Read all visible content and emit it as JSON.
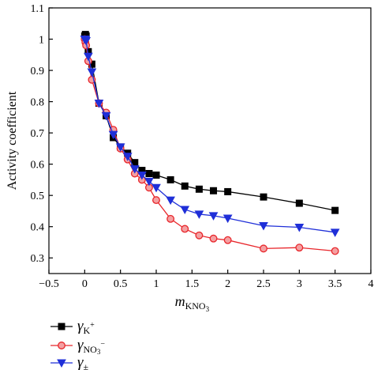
{
  "chart_data": {
    "type": "line",
    "xlabel": {
      "main": "m",
      "sub": "KNO",
      "sub2": "3"
    },
    "ylabel": "Activity coefficient",
    "xlim": [
      -0.5,
      4
    ],
    "ylim": [
      0.25,
      1.1
    ],
    "xticks": [
      -0.5,
      0,
      0.5,
      1,
      1.5,
      2,
      2.5,
      3,
      3.5,
      4
    ],
    "xtick_labels": [
      "−0.5",
      "0",
      "0.5",
      "1",
      "1.5",
      "2",
      "2.5",
      "3",
      "3.5",
      "4"
    ],
    "yticks": [
      0.3,
      0.4,
      0.5,
      0.6,
      0.7,
      0.8,
      0.9,
      1.0,
      1.1
    ],
    "ytick_labels": [
      "0.3",
      "0.4",
      "0.5",
      "0.6",
      "0.7",
      "0.8",
      "0.9",
      "1",
      "1.1"
    ],
    "legend_position": "bottom-left, below plot",
    "series": [
      {
        "name": "γK+",
        "legend": {
          "sym": "γ",
          "sub": "K",
          "sup": "+"
        },
        "color": "#000000",
        "marker": "square",
        "x": [
          0.0,
          0.01,
          0.02,
          0.05,
          0.1,
          0.2,
          0.3,
          0.4,
          0.5,
          0.6,
          0.7,
          0.8,
          0.9,
          1.0,
          1.2,
          1.4,
          1.6,
          1.8,
          2.0,
          2.5,
          3.0,
          3.5
        ],
        "y": [
          1.01,
          1.015,
          1.01,
          0.96,
          0.92,
          0.795,
          0.755,
          0.685,
          0.655,
          0.635,
          0.605,
          0.58,
          0.57,
          0.565,
          0.55,
          0.53,
          0.52,
          0.515,
          0.512,
          0.495,
          0.475,
          0.452
        ]
      },
      {
        "name": "γNO3−",
        "legend": {
          "sym": "γ",
          "sub": "NO",
          "sub2": "3",
          "sup": "−"
        },
        "color": "#e8262b",
        "marker": "circle",
        "x": [
          0.0,
          0.01,
          0.02,
          0.05,
          0.1,
          0.2,
          0.3,
          0.4,
          0.5,
          0.6,
          0.7,
          0.8,
          0.9,
          1.0,
          1.2,
          1.4,
          1.6,
          1.8,
          2.0,
          2.5,
          3.0,
          3.5
        ],
        "y": [
          1.0,
          0.99,
          0.98,
          0.93,
          0.87,
          0.795,
          0.765,
          0.71,
          0.65,
          0.615,
          0.57,
          0.55,
          0.525,
          0.485,
          0.425,
          0.393,
          0.372,
          0.362,
          0.357,
          0.33,
          0.333,
          0.322
        ]
      },
      {
        "name": "γ±",
        "legend": {
          "sym": "γ",
          "sub": "±",
          "sup": ""
        },
        "color": "#1f2fd8",
        "marker": "triangle-down",
        "x": [
          0.0,
          0.01,
          0.02,
          0.05,
          0.1,
          0.2,
          0.3,
          0.4,
          0.5,
          0.6,
          0.7,
          0.8,
          0.9,
          1.0,
          1.2,
          1.4,
          1.6,
          1.8,
          2.0,
          2.5,
          3.0,
          3.5
        ],
        "y": [
          1.0,
          1.0,
          0.995,
          0.945,
          0.895,
          0.795,
          0.755,
          0.695,
          0.655,
          0.625,
          0.585,
          0.565,
          0.545,
          0.525,
          0.485,
          0.455,
          0.44,
          0.435,
          0.427,
          0.403,
          0.398,
          0.382
        ]
      }
    ]
  }
}
